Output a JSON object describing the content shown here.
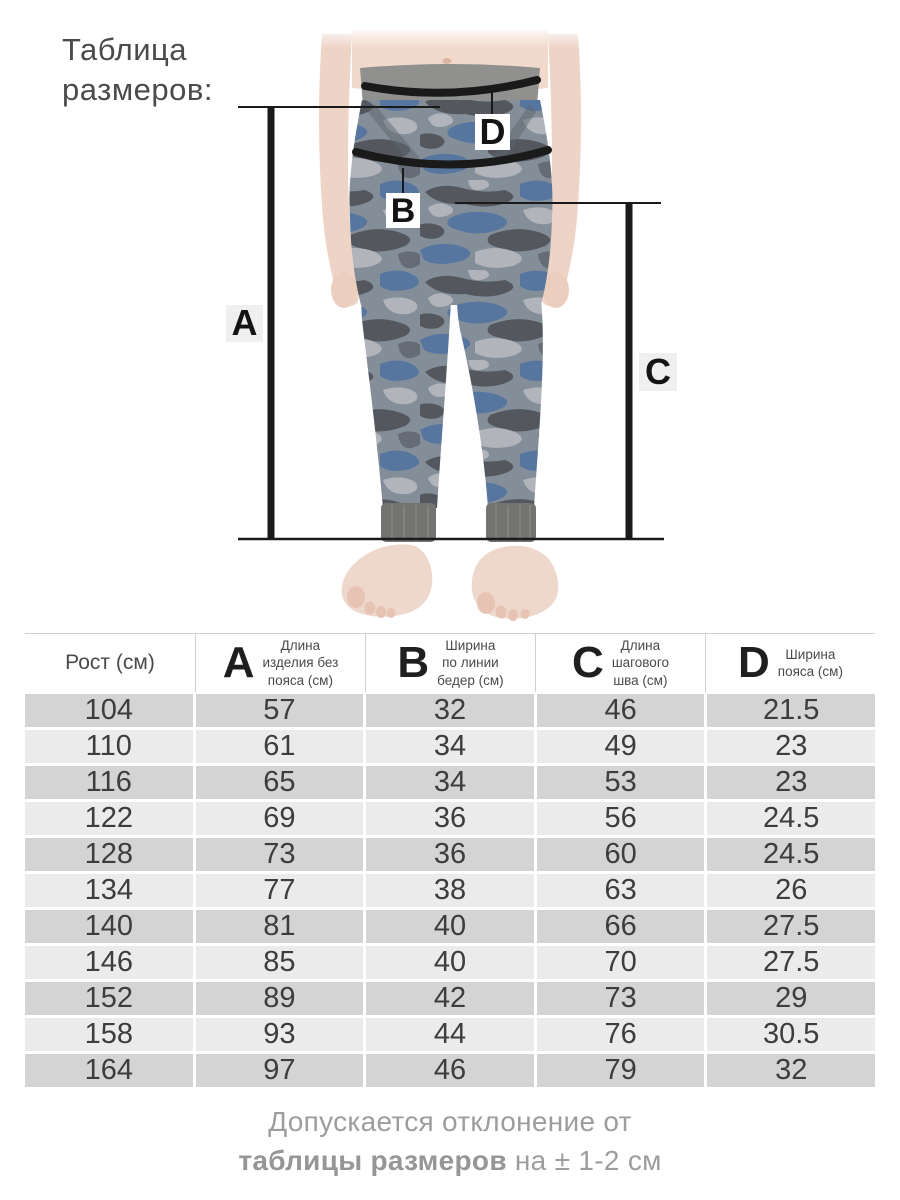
{
  "title": "Таблица\nразмеров:",
  "diagram": {
    "markers": {
      "a": "A",
      "b": "B",
      "c": "C",
      "d": "D"
    }
  },
  "table": {
    "height_header": "Рост (см)",
    "columns": [
      {
        "letter": "A",
        "label": "Длина\nизделия без\nпояса (см)"
      },
      {
        "letter": "B",
        "label": "Ширина\nпо линии\nбедер (см)"
      },
      {
        "letter": "C",
        "label": "Длина\nшагового\nшва (см)"
      },
      {
        "letter": "D",
        "label": "Ширина\nпояса (см)"
      }
    ],
    "rows": [
      [
        "104",
        "57",
        "32",
        "46",
        "21.5"
      ],
      [
        "110",
        "61",
        "34",
        "49",
        "23"
      ],
      [
        "116",
        "65",
        "34",
        "53",
        "23"
      ],
      [
        "122",
        "69",
        "36",
        "56",
        "24.5"
      ],
      [
        "128",
        "73",
        "36",
        "60",
        "24.5"
      ],
      [
        "134",
        "77",
        "38",
        "63",
        "26"
      ],
      [
        "140",
        "81",
        "40",
        "66",
        "27.5"
      ],
      [
        "146",
        "85",
        "40",
        "70",
        "27.5"
      ],
      [
        "152",
        "89",
        "42",
        "73",
        "29"
      ],
      [
        "158",
        "93",
        "44",
        "76",
        "30.5"
      ],
      [
        "164",
        "97",
        "46",
        "79",
        "32"
      ]
    ]
  },
  "footer": {
    "line1": "Допускается отклонение от",
    "line2_bold": "таблицы размеров",
    "line2_rest": " на ± 1-2 см"
  },
  "colors": {
    "row_dark": "#d4d4d4",
    "row_light": "#ebebeb",
    "annotation": "#1a1a1a",
    "waistband_gray": "#8b8b89",
    "camo_base": "#7e8894",
    "camo_dark": "#4b5056",
    "camo_blue": "#4e6f9b",
    "camo_light": "#adb2b8",
    "skin": "#f1d7ca",
    "note_gray": "#9d9d9d"
  }
}
